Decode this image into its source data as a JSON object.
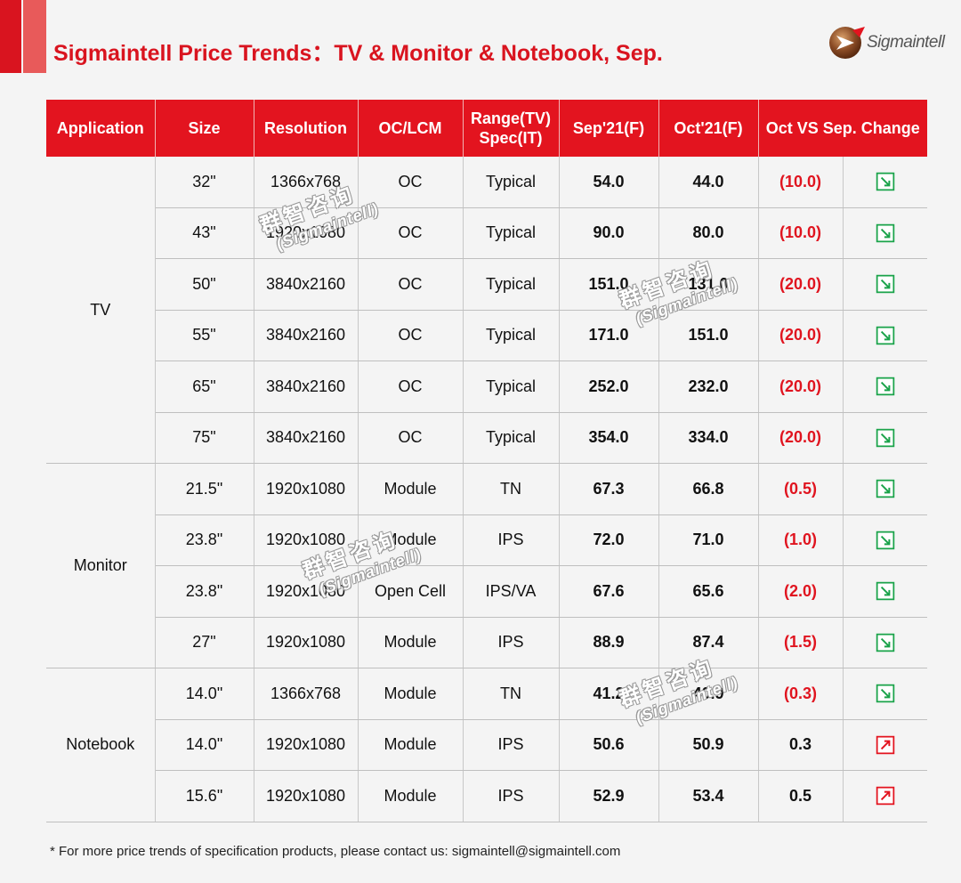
{
  "header": {
    "title": "Sigmaintell Price Trends：TV & Monitor & Notebook, Sep.",
    "logo_text": "Sigmaintell"
  },
  "table": {
    "columns": [
      "Application",
      "Size",
      "Resolution",
      "OC/LCM",
      "Range(TV)\nSpec(IT)",
      "Sep'21(F)",
      "Oct'21(F)",
      "Oct VS Sep. Change"
    ],
    "groups": [
      {
        "application": "TV",
        "rows": [
          {
            "size": "32\"",
            "resolution": "1366x768",
            "oc_lcm": "OC",
            "spec": "Typical",
            "sep": "54.0",
            "oct": "44.0",
            "change": "(10.0)",
            "trend": "down"
          },
          {
            "size": "43\"",
            "resolution": "1920x1080",
            "oc_lcm": "OC",
            "spec": "Typical",
            "sep": "90.0",
            "oct": "80.0",
            "change": "(10.0)",
            "trend": "down"
          },
          {
            "size": "50\"",
            "resolution": "3840x2160",
            "oc_lcm": "OC",
            "spec": "Typical",
            "sep": "151.0",
            "oct": "131.0",
            "change": "(20.0)",
            "trend": "down"
          },
          {
            "size": "55\"",
            "resolution": "3840x2160",
            "oc_lcm": "OC",
            "spec": "Typical",
            "sep": "171.0",
            "oct": "151.0",
            "change": "(20.0)",
            "trend": "down"
          },
          {
            "size": "65\"",
            "resolution": "3840x2160",
            "oc_lcm": "OC",
            "spec": "Typical",
            "sep": "252.0",
            "oct": "232.0",
            "change": "(20.0)",
            "trend": "down"
          },
          {
            "size": "75\"",
            "resolution": "3840x2160",
            "oc_lcm": "OC",
            "spec": "Typical",
            "sep": "354.0",
            "oct": "334.0",
            "change": "(20.0)",
            "trend": "down"
          }
        ]
      },
      {
        "application": "Monitor",
        "rows": [
          {
            "size": "21.5\"",
            "resolution": "1920x1080",
            "oc_lcm": "Module",
            "spec": "TN",
            "sep": "67.3",
            "oct": "66.8",
            "change": "(0.5)",
            "trend": "down"
          },
          {
            "size": "23.8\"",
            "resolution": "1920x1080",
            "oc_lcm": "Module",
            "spec": "IPS",
            "sep": "72.0",
            "oct": "71.0",
            "change": "(1.0)",
            "trend": "down"
          },
          {
            "size": "23.8\"",
            "resolution": "1920x1080",
            "oc_lcm": "Open Cell",
            "spec": "IPS/VA",
            "sep": "67.6",
            "oct": "65.6",
            "change": "(2.0)",
            "trend": "down"
          },
          {
            "size": "27\"",
            "resolution": "1920x1080",
            "oc_lcm": "Module",
            "spec": "IPS",
            "sep": "88.9",
            "oct": "87.4",
            "change": "(1.5)",
            "trend": "down"
          }
        ]
      },
      {
        "application": "Notebook",
        "rows": [
          {
            "size": "14.0\"",
            "resolution": "1366x768",
            "oc_lcm": "Module",
            "spec": "TN",
            "sep": "41.2",
            "oct": "40.9",
            "change": "(0.3)",
            "trend": "down"
          },
          {
            "size": "14.0\"",
            "resolution": "1920x1080",
            "oc_lcm": "Module",
            "spec": "IPS",
            "sep": "50.6",
            "oct": "50.9",
            "change": "0.3",
            "trend": "up"
          },
          {
            "size": "15.6\"",
            "resolution": "1920x1080",
            "oc_lcm": "Module",
            "spec": "IPS",
            "sep": "52.9",
            "oct": "53.4",
            "change": "0.5",
            "trend": "up"
          }
        ]
      }
    ]
  },
  "icons": {
    "down": "arrow-down-right-icon",
    "up": "arrow-up-right-icon"
  },
  "colors": {
    "accent": "#e3141f",
    "down_arrow": "#1aa34a",
    "up_arrow": "#e3141f"
  },
  "watermark": {
    "line1": "群智咨询",
    "line2": "(Sigmaintell)"
  },
  "footnote": "* For more price trends of specification products, please contact us: sigmaintell@sigmaintell.com"
}
